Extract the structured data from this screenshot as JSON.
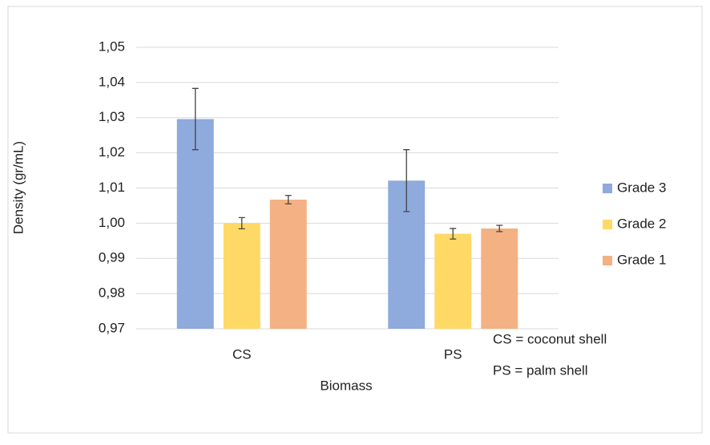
{
  "chart_data": {
    "type": "bar",
    "categories": [
      "CS",
      "PS"
    ],
    "series": [
      {
        "name": "Grade 3",
        "color": "#8faadc",
        "values": [
          1.0296,
          1.0121
        ],
        "errors": [
          0.0087,
          0.0088
        ]
      },
      {
        "name": "Grade 2",
        "color": "#ffd966",
        "values": [
          1.0,
          0.997
        ],
        "errors": [
          0.0016,
          0.0015
        ]
      },
      {
        "name": "Grade 1",
        "color": "#f4b183",
        "values": [
          1.0067,
          0.9985
        ],
        "errors": [
          0.0012,
          0.0009
        ]
      }
    ],
    "ylim": [
      0.97,
      1.05
    ],
    "yticks": [
      {
        "value": 0.97,
        "label": "0,97"
      },
      {
        "value": 0.98,
        "label": "0,98"
      },
      {
        "value": 0.99,
        "label": "0,99"
      },
      {
        "value": 1.0,
        "label": "1,00"
      },
      {
        "value": 1.01,
        "label": "1,01"
      },
      {
        "value": 1.02,
        "label": "1,02"
      },
      {
        "value": 1.03,
        "label": "1,03"
      },
      {
        "value": 1.04,
        "label": "1,04"
      },
      {
        "value": 1.05,
        "label": "1,05"
      }
    ],
    "y_label": "Density (gr/mL)",
    "x_label": "Biomass",
    "grid": true,
    "legend": "right",
    "annotations": [
      "CS = coconut shell",
      "PS = palm shell"
    ]
  }
}
